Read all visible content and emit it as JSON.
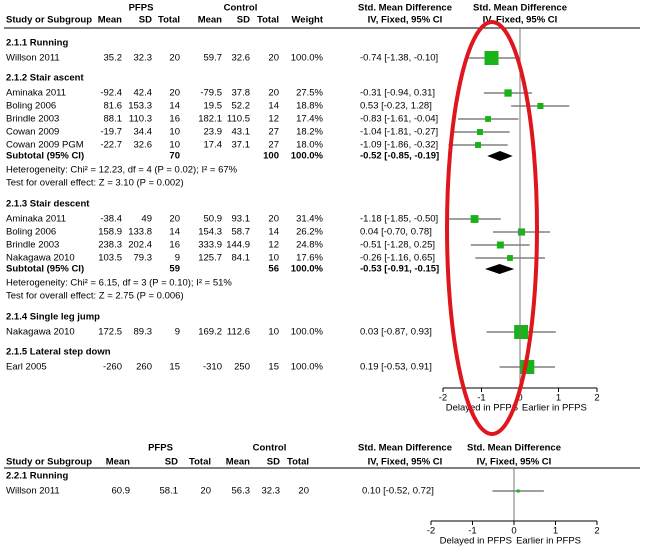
{
  "panels": [
    {
      "header": {
        "groups": [
          "PFPS",
          "Control",
          "Std. Mean Difference",
          "Std. Mean Difference"
        ],
        "columns": [
          "Study or Subgroup",
          "Mean",
          "SD",
          "Total",
          "Mean",
          "SD",
          "Total",
          "Weight",
          "IV, Fixed, 95% CI",
          "IV, Fixed, 95% CI"
        ]
      },
      "groups": [
        {
          "title": "2.1.1 Running",
          "studies": [
            {
              "name": "Willson 2011",
              "cells": [
                35.2,
                32.3,
                20,
                59.7,
                32.6,
                20,
                "100.0%"
              ],
              "ci_label": "-0.74 [-1.38, -0.10]",
              "smd": -0.74,
              "lo": -1.38,
              "hi": -0.1
            }
          ]
        },
        {
          "title": "2.1.2 Stair ascent",
          "studies": [
            {
              "name": "Aminaka 2011",
              "cells": [
                -92.4,
                42.4,
                20,
                -79.5,
                37.8,
                20,
                "27.5%"
              ],
              "ci_label": "-0.31 [-0.94, 0.31]",
              "smd": -0.31,
              "lo": -0.94,
              "hi": 0.31
            },
            {
              "name": "Boling 2006",
              "cells": [
                81.6,
                153.3,
                14,
                19.5,
                52.2,
                14,
                "18.8%"
              ],
              "ci_label": "0.53 [-0.23, 1.28]",
              "smd": 0.53,
              "lo": -0.23,
              "hi": 1.28
            },
            {
              "name": "Brindle 2003",
              "cells": [
                88.1,
                110.3,
                16,
                182.1,
                110.5,
                12,
                "17.4%"
              ],
              "ci_label": "-0.83 [-1.61, -0.04]",
              "smd": -0.83,
              "lo": -1.61,
              "hi": -0.04
            },
            {
              "name": "Cowan 2009",
              "cells": [
                -19.7,
                34.4,
                10,
                23.9,
                43.1,
                27,
                "18.2%"
              ],
              "ci_label": "-1.04 [-1.81, -0.27]",
              "smd": -1.04,
              "lo": -1.81,
              "hi": -0.27
            },
            {
              "name": "Cowan 2009 PGM",
              "cells": [
                -22.7,
                32.6,
                10,
                17.4,
                37.1,
                27,
                "18.0%"
              ],
              "ci_label": "-1.09 [-1.86, -0.32]",
              "smd": -1.09,
              "lo": -1.86,
              "hi": -0.32
            }
          ],
          "subtotal": {
            "name": "Subtotal (95% CI)",
            "cells": [
              null,
              null,
              70,
              null,
              null,
              100,
              "100.0%"
            ],
            "ci_label": "-0.52 [-0.85, -0.19]",
            "smd": -0.52,
            "lo": -0.85,
            "hi": -0.19
          },
          "heterogeneity": "Heterogeneity: Chi² = 12.23, df = 4 (P = 0.02); I² = 67%",
          "overall_test": "Test for overall effect: Z = 3.10 (P = 0.002)"
        },
        {
          "title": "2.1.3 Stair descent",
          "studies": [
            {
              "name": "Aminaka 2011",
              "cells": [
                -38.4,
                49,
                20,
                50.9,
                93.1,
                20,
                "31.4%"
              ],
              "ci_label": "-1.18 [-1.85, -0.50]",
              "smd": -1.18,
              "lo": -1.85,
              "hi": -0.5
            },
            {
              "name": "Boling 2006",
              "cells": [
                158.9,
                133.8,
                14,
                154.3,
                58.7,
                14,
                "26.2%"
              ],
              "ci_label": "0.04 [-0.70, 0.78]",
              "smd": 0.04,
              "lo": -0.7,
              "hi": 0.78
            },
            {
              "name": "Brindle 2003",
              "cells": [
                238.3,
                202.4,
                16,
                333.9,
                144.9,
                12,
                "24.8%"
              ],
              "ci_label": "-0.51 [-1.28, 0.25]",
              "smd": -0.51,
              "lo": -1.28,
              "hi": 0.25
            },
            {
              "name": "Nakagawa 2010",
              "cells": [
                103.5,
                79.3,
                9,
                125.7,
                84.1,
                10,
                "17.6%"
              ],
              "ci_label": "-0.26 [-1.16, 0.65]",
              "smd": -0.26,
              "lo": -1.16,
              "hi": 0.65
            }
          ],
          "subtotal": {
            "name": "Subtotal (95% CI)",
            "cells": [
              null,
              null,
              59,
              null,
              null,
              56,
              "100.0%"
            ],
            "ci_label": "-0.53 [-0.91, -0.15]",
            "smd": -0.53,
            "lo": -0.91,
            "hi": -0.15
          },
          "heterogeneity": "Heterogeneity: Chi² = 6.15, df = 3 (P = 0.10); I² = 51%",
          "overall_test": "Test for overall effect: Z = 2.75 (P = 0.006)"
        },
        {
          "title": "2.1.4 Single leg jump",
          "studies": [
            {
              "name": "Nakagawa 2010",
              "cells": [
                172.5,
                89.3,
                9,
                169.2,
                112.6,
                10,
                "100.0%"
              ],
              "ci_label": "0.03 [-0.87, 0.93]",
              "smd": 0.03,
              "lo": -0.87,
              "hi": 0.93
            }
          ]
        },
        {
          "title": "2.1.5 Lateral step down",
          "studies": [
            {
              "name": "Earl 2005",
              "cells": [
                -260,
                260,
                15,
                -310,
                250,
                15,
                "100.0%"
              ],
              "ci_label": "0.19 [-0.53, 0.91]",
              "smd": 0.19,
              "lo": -0.53,
              "hi": 0.91
            }
          ]
        }
      ],
      "axis": {
        "xlim": [
          -2,
          2
        ],
        "xticks": [
          -2,
          -1,
          0,
          1,
          2
        ],
        "left_label": "Delayed in PFPS",
        "right_label": "Earlier in PFPS"
      }
    },
    {
      "header": {
        "groups": [
          "PFPS",
          "Control",
          "Std. Mean Difference",
          "Std. Mean Difference"
        ],
        "columns": [
          "Study or Subgroup",
          "Mean",
          "SD",
          "Total",
          "Mean",
          "SD",
          "Total",
          "IV, Fixed, 95% CI",
          "IV, Fixed, 95% CI"
        ]
      },
      "groups": [
        {
          "title": "2.2.1 Running",
          "studies": [
            {
              "name": "Willson 2011",
              "cells": [
                60.9,
                58.1,
                20,
                56.3,
                32.3,
                20
              ],
              "ci_label": "0.10 [-0.52, 0.72]",
              "smd": 0.1,
              "lo": -0.52,
              "hi": 0.72
            }
          ]
        }
      ],
      "axis": {
        "xlim": [
          -2,
          2
        ],
        "xticks": [
          -2,
          -1,
          0,
          1,
          2
        ],
        "left_label": "Delayed in PFPS",
        "right_label": "Earlier in PFPS"
      }
    }
  ]
}
